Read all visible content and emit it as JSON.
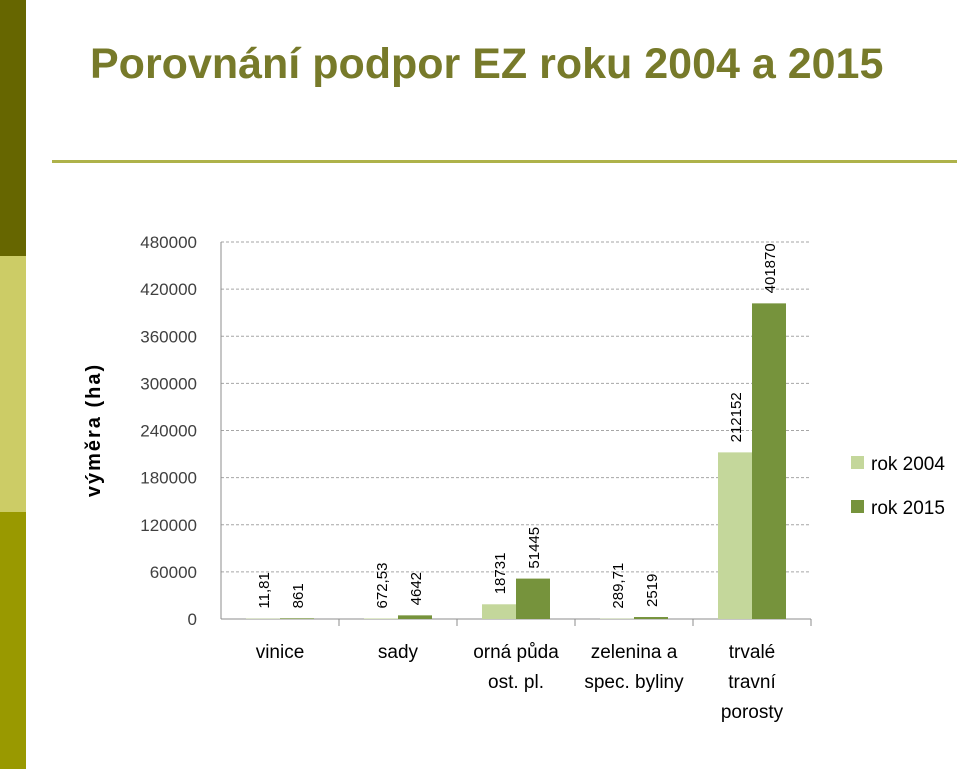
{
  "slide": {
    "title": "Porovnání podpor EZ roku 2004 a 2015",
    "colors": {
      "stripe_dark": "#666600",
      "stripe_light": "#cccc66",
      "stripe_mid": "#999900",
      "title": "#777a2a"
    }
  },
  "chart_data": {
    "type": "bar",
    "title": "",
    "xlabel": "",
    "ylabel": "výměra (ha)",
    "ylim": [
      0,
      480000
    ],
    "yticks": [
      0,
      60000,
      120000,
      180000,
      240000,
      300000,
      360000,
      420000,
      480000
    ],
    "ytick_labels": [
      "0",
      "60000",
      "120000",
      "180000",
      "240000",
      "300000",
      "360000",
      "420000",
      "480000"
    ],
    "grid": true,
    "legend_position": "right",
    "categories": [
      [
        "vinice"
      ],
      [
        "sady"
      ],
      [
        "orná půda",
        "ost. pl."
      ],
      [
        "zelenina a",
        "spec. byliny"
      ],
      [
        "trvalé",
        "travní",
        "porosty"
      ]
    ],
    "series": [
      {
        "name": "rok 2004",
        "color": "#c4d79b",
        "values": [
          11.81,
          672.53,
          18731,
          289.71,
          212152
        ],
        "labels": [
          "11,81",
          "672,53",
          "18731",
          "289,71",
          "212152"
        ]
      },
      {
        "name": "rok 2015",
        "color": "#76933c",
        "values": [
          861,
          4642,
          51445,
          2519,
          401870
        ],
        "labels": [
          "861",
          "4642",
          "51445",
          "2519",
          "401870"
        ]
      }
    ]
  }
}
